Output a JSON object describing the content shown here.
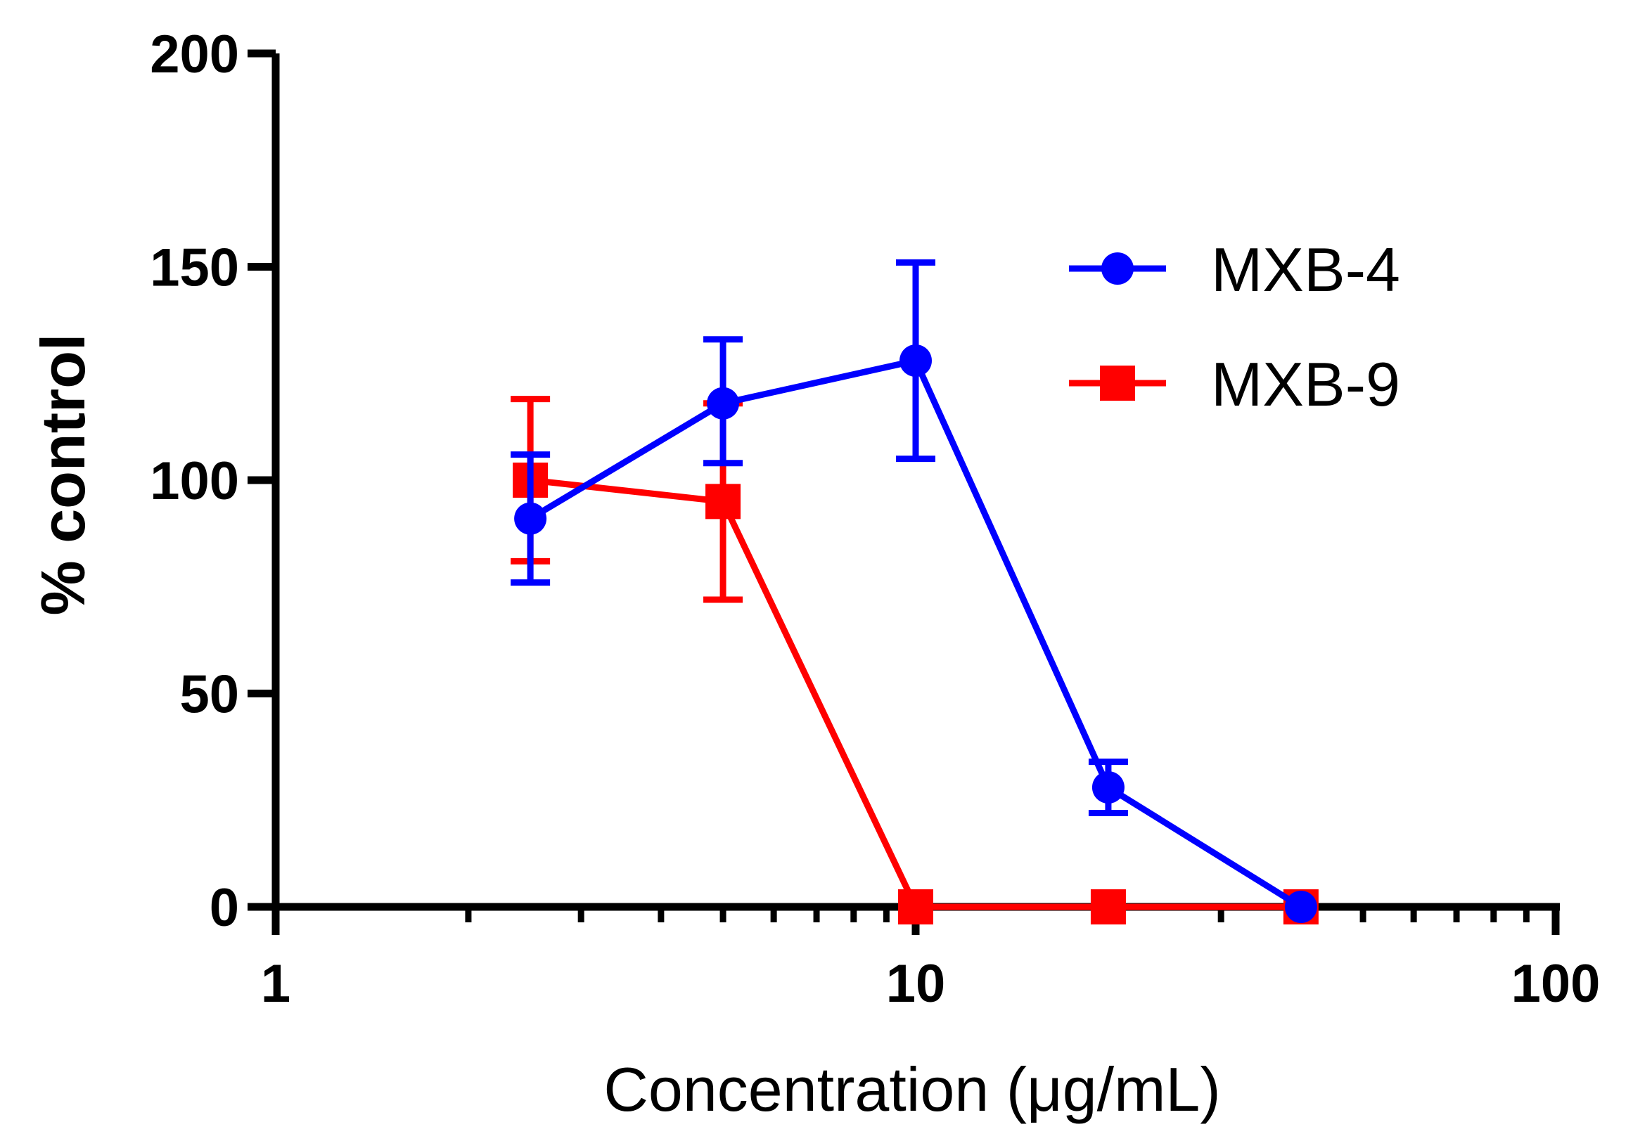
{
  "chart_data": {
    "type": "line",
    "title": "",
    "xlabel": "Concentration (μg/mL)",
    "ylabel": "% control",
    "xscale": "log",
    "xlim": [
      1,
      100
    ],
    "ylim": [
      0,
      200
    ],
    "x_ticks": [
      1,
      10,
      100
    ],
    "x_tick_labels": [
      "1",
      "10",
      "100"
    ],
    "y_ticks": [
      0,
      50,
      100,
      150,
      200
    ],
    "y_tick_labels": [
      "0",
      "50",
      "100",
      "150",
      "200"
    ],
    "grid": false,
    "legend_position": "upper-right",
    "series": [
      {
        "name": "MXB-4",
        "color": "#0000ff",
        "marker": "circle",
        "x": [
          2.5,
          5,
          10,
          20,
          40
        ],
        "y": [
          91,
          118,
          128,
          28,
          0
        ],
        "err_low": [
          76,
          104,
          105,
          22,
          0
        ],
        "err_high": [
          106,
          133,
          151,
          34,
          0
        ]
      },
      {
        "name": "MXB-9",
        "color": "#ff0000",
        "marker": "square",
        "x": [
          2.5,
          5,
          10,
          20,
          40
        ],
        "y": [
          100,
          95,
          0,
          0,
          0
        ],
        "err_low": [
          81,
          72,
          0,
          0,
          0
        ],
        "err_high": [
          119,
          118,
          0,
          0,
          0
        ]
      }
    ]
  }
}
